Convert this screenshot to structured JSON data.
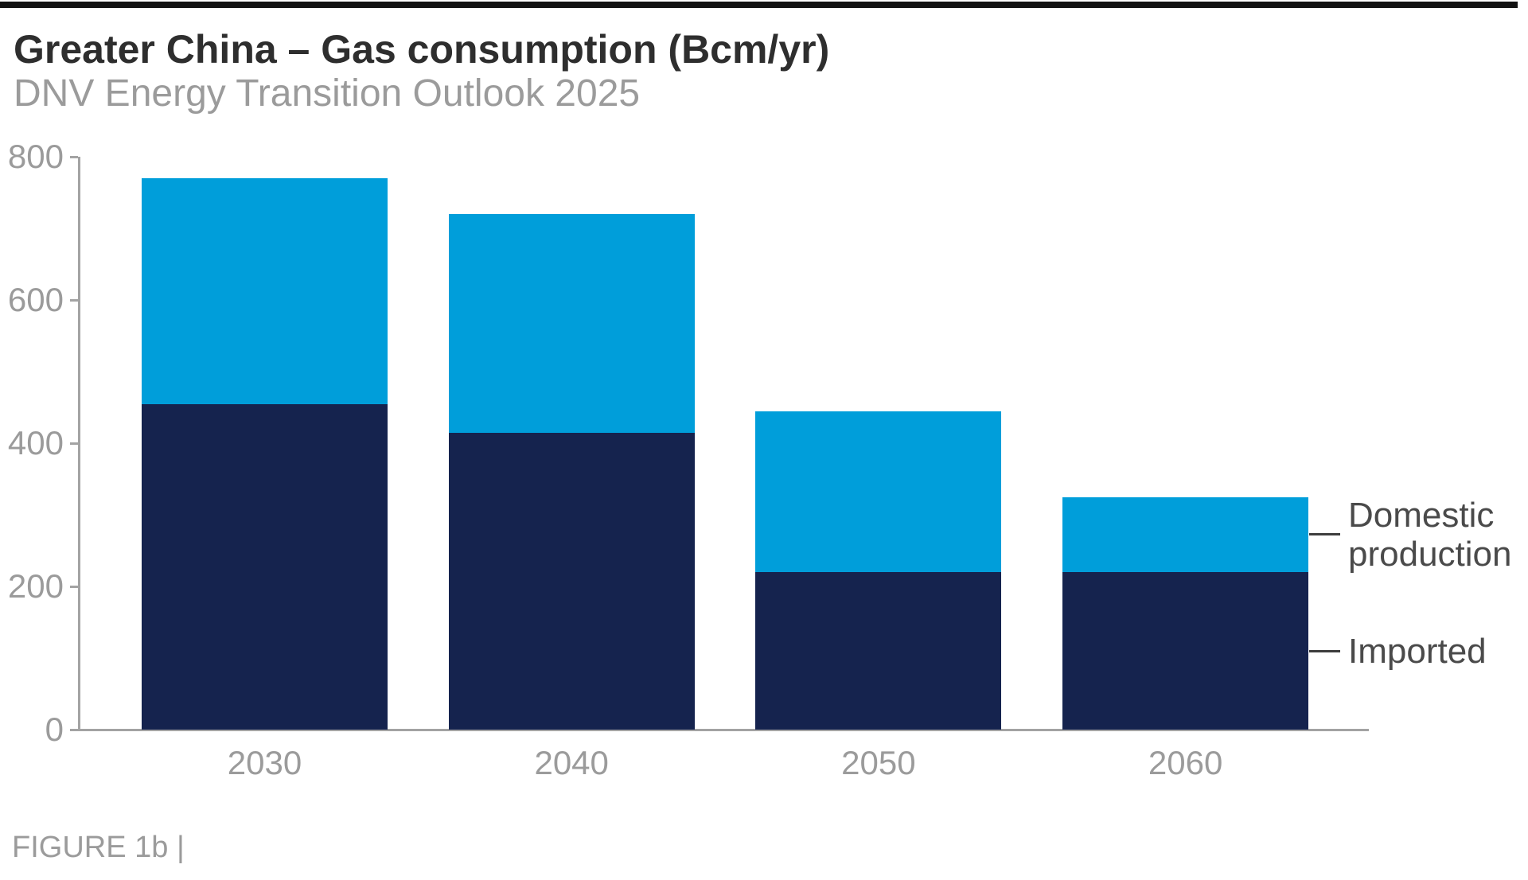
{
  "page": {
    "title": "Greater China – Gas consumption (Bcm/yr)",
    "subtitle": "DNV Energy Transition Outlook 2025",
    "caption": "FIGURE 1b |"
  },
  "legend": {
    "domestic_label": "Domestic production",
    "imported_label": "Imported"
  },
  "colors": {
    "domestic_blue": "#009EDA",
    "imported_navy": "#15234E",
    "axis_gray": "#A3A3A3",
    "tick_label_gray": "#9B9B9B",
    "title_dark": "#2E2E2E",
    "legend_text": "#4A4A4A",
    "top_bar_black": "#121212"
  },
  "chart_data": {
    "type": "bar",
    "stacked": true,
    "title": "Greater China – Gas consumption (Bcm/yr)",
    "subtitle": "DNV Energy Transition Outlook 2025",
    "categories": [
      "2030",
      "2040",
      "2050",
      "2060"
    ],
    "series": [
      {
        "name": "Imported",
        "color": "#15234E",
        "values": [
          455,
          415,
          220,
          220
        ]
      },
      {
        "name": "Domestic production",
        "color": "#009EDA",
        "values": [
          315,
          305,
          225,
          105
        ]
      }
    ],
    "totals": [
      770,
      720,
      445,
      325
    ],
    "xlabel": "",
    "ylabel": "Bcm/yr",
    "ylim": [
      0,
      800
    ],
    "yticks": [
      0,
      200,
      400,
      600,
      800
    ],
    "grid": false,
    "legend_position": "right-annotated"
  }
}
